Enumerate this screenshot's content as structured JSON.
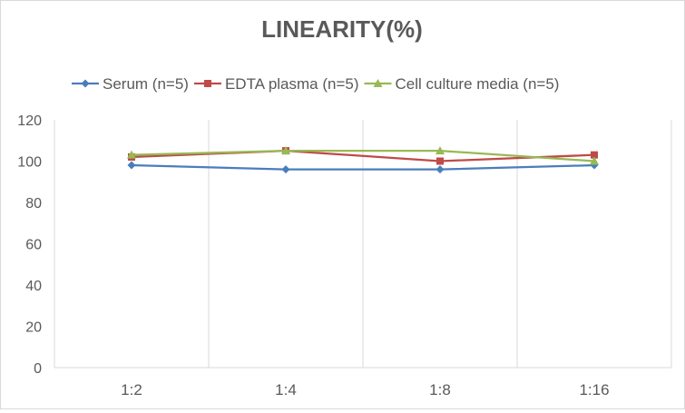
{
  "chart_data": {
    "type": "line",
    "title": "LINEARITY(%)",
    "xlabel": "",
    "ylabel": "",
    "categories": [
      "1:2",
      "1:4",
      "1:8",
      "1:16"
    ],
    "ylim": [
      0,
      120
    ],
    "yticks": [
      0,
      20,
      40,
      60,
      80,
      100,
      120
    ],
    "grid": "vertical",
    "legend_position": "top",
    "series": [
      {
        "name": "Serum (n=5)",
        "values": [
          98,
          96,
          96,
          98
        ],
        "color": "#4a7ebb",
        "marker": "diamond"
      },
      {
        "name": "EDTA plasma (n=5)",
        "values": [
          102,
          105,
          100,
          103
        ],
        "color": "#be4b48",
        "marker": "square"
      },
      {
        "name": "Cell culture media (n=5)",
        "values": [
          103,
          105,
          105,
          100
        ],
        "color": "#98b954",
        "marker": "triangle"
      }
    ]
  }
}
